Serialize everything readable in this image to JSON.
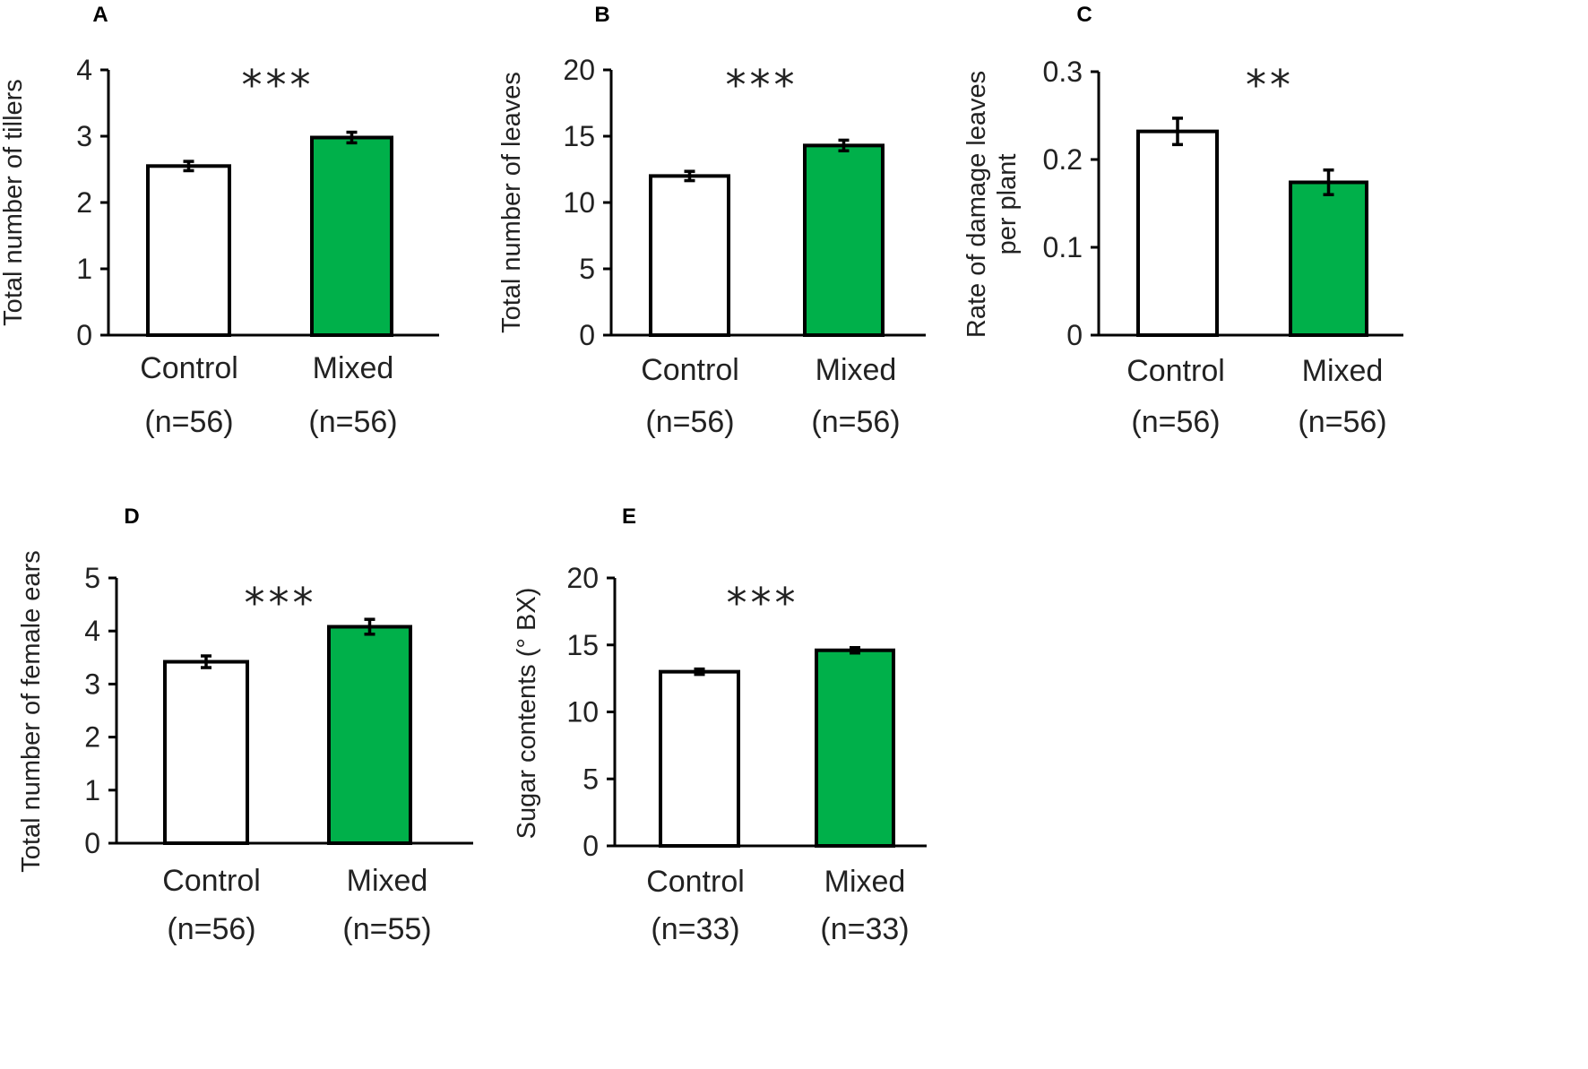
{
  "colors": {
    "control": "#ffffff",
    "mixed": "#00b04a",
    "stroke": "#000000"
  },
  "chart_data": [
    {
      "type": "bar",
      "panel": "A",
      "ylabel": "Total number of tillers",
      "ylim": [
        0,
        4
      ],
      "yticks": [
        "0",
        "1",
        "2",
        "3",
        "4"
      ],
      "categories": [
        "Control",
        "Mixed"
      ],
      "sample_sizes": [
        "(n=56)",
        "(n=56)"
      ],
      "values": [
        2.55,
        2.98
      ],
      "errors": [
        0.07,
        0.08
      ],
      "significance": "***"
    },
    {
      "type": "bar",
      "panel": "B",
      "ylabel": "Total number of leaves",
      "ylim": [
        0,
        20
      ],
      "yticks": [
        "0",
        "5",
        "10",
        "15",
        "20"
      ],
      "categories": [
        "Control",
        "Mixed"
      ],
      "sample_sizes": [
        "(n=56)",
        "(n=56)"
      ],
      "values": [
        12.0,
        14.3
      ],
      "errors": [
        0.35,
        0.4
      ],
      "significance": "***"
    },
    {
      "type": "bar",
      "panel": "C",
      "ylabel": [
        "Rate of damage leaves",
        "per plant"
      ],
      "ylim": [
        0,
        0.3
      ],
      "yticks": [
        "0",
        "0.1",
        "0.2",
        "0.3"
      ],
      "categories": [
        "Control",
        "Mixed"
      ],
      "sample_sizes": [
        "(n=56)",
        "(n=56)"
      ],
      "values": [
        0.232,
        0.174
      ],
      "errors": [
        0.015,
        0.014
      ],
      "significance": "**"
    },
    {
      "type": "bar",
      "panel": "D",
      "ylabel": "Total number of female ears",
      "ylim": [
        0,
        5
      ],
      "yticks": [
        "0",
        "1",
        "2",
        "3",
        "4",
        "5"
      ],
      "categories": [
        "Control",
        "Mixed"
      ],
      "sample_sizes": [
        "(n=56)",
        "(n=55)"
      ],
      "values": [
        3.42,
        4.08
      ],
      "errors": [
        0.11,
        0.14
      ],
      "significance": "***"
    },
    {
      "type": "bar",
      "panel": "E",
      "ylabel": "Sugar contents (° BX)",
      "ylim": [
        0,
        20
      ],
      "yticks": [
        "0",
        "5",
        "10",
        "15",
        "20"
      ],
      "categories": [
        "Control",
        "Mixed"
      ],
      "sample_sizes": [
        "(n=33)",
        "(n=33)"
      ],
      "values": [
        13.0,
        14.6
      ],
      "errors": [
        0.2,
        0.2
      ],
      "significance": "***"
    }
  ]
}
